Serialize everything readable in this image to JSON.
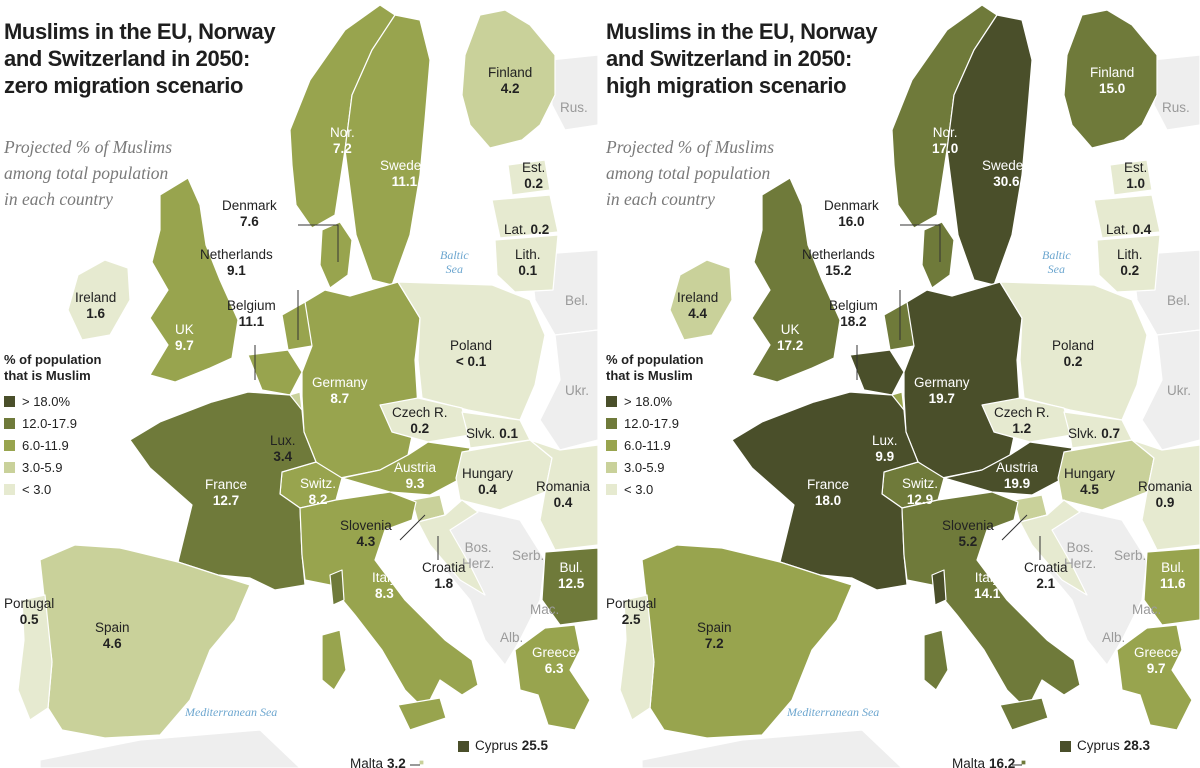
{
  "colors": {
    "bin_gt18": "#4a4f2a",
    "bin_12_18": "#6f7a3a",
    "bin_6_12": "#98a44e",
    "bin_3_6": "#c9d19a",
    "bin_lt3": "#e6ead0",
    "grey_land": "#eeeeee",
    "sea_label": "#6ca6cf"
  },
  "legend": {
    "title_line1": "% of population",
    "title_line2": "that is Muslim",
    "items": [
      {
        "label": "> 18.0%",
        "bin": "bin_gt18"
      },
      {
        "label": "12.0-17.9",
        "bin": "bin_12_18"
      },
      {
        "label": "6.0-11.9",
        "bin": "bin_6_12"
      },
      {
        "label": "3.0-5.9",
        "bin": "bin_3_6"
      },
      {
        "label": "< 3.0",
        "bin": "bin_lt3"
      }
    ]
  },
  "subtitle": {
    "line1": "Projected % of Muslims",
    "line2": "among total population",
    "line3": "in each country"
  },
  "seas": {
    "baltic_line1": "Baltic",
    "baltic_line2": "Sea",
    "mediterranean": "Mediterranean Sea"
  },
  "neighbors": {
    "rus": "Rus.",
    "bel": "Bel.",
    "ukr": "Ukr.",
    "bos_line1": "Bos.",
    "bos_line2": "Herz.",
    "serb": "Serb.",
    "mac": "Mac.",
    "alb": "Alb."
  },
  "names": {
    "finland": "Finland",
    "norway": "Nor.",
    "sweden": "Sweden",
    "estonia": "Est.",
    "latvia": "Lat.",
    "lithuania": "Lith.",
    "denmark": "Denmark",
    "netherlands": "Netherlands",
    "belgium": "Belgium",
    "ireland": "Ireland",
    "uk": "UK",
    "germany": "Germany",
    "poland": "Poland",
    "czech": "Czech R.",
    "slovakia": "Slvk.",
    "luxembourg": "Lux.",
    "france": "France",
    "switzerland": "Switz.",
    "austria": "Austria",
    "hungary": "Hungary",
    "romania": "Romania",
    "slovenia": "Slovenia",
    "croatia": "Croatia",
    "italy": "Italy",
    "bulgaria": "Bul.",
    "portugal": "Portugal",
    "spain": "Spain",
    "greece": "Greece",
    "cyprus": "Cyprus",
    "malta": "Malta"
  },
  "scenarios": [
    {
      "title_line1": "Muslims in the EU, Norway",
      "title_line2": "and Switzerland in 2050:",
      "title_line3": "zero migration scenario",
      "values": {
        "finland": 4.2,
        "norway": 7.2,
        "sweden": 11.1,
        "estonia": 0.2,
        "latvia": 0.2,
        "lithuania": 0.1,
        "denmark": 7.6,
        "netherlands": 9.1,
        "belgium": 11.1,
        "ireland": 1.6,
        "uk": 9.7,
        "germany": 8.7,
        "poland": 0.1,
        "czech": 0.2,
        "slovakia": 0.1,
        "luxembourg": 3.4,
        "france": 12.7,
        "switzerland": 8.2,
        "austria": 9.3,
        "hungary": 0.4,
        "romania": 0.4,
        "slovenia": 4.3,
        "croatia": 1.8,
        "italy": 8.3,
        "bulgaria": 12.5,
        "portugal": 0.5,
        "spain": 4.6,
        "greece": 6.3,
        "cyprus": 25.5,
        "malta": 3.2
      },
      "labels": {
        "finland": "4.2",
        "norway": "7.2",
        "sweden": "11.1",
        "estonia": "0.2",
        "latvia": "0.2",
        "lithuania": "0.1",
        "denmark": "7.6",
        "netherlands": "9.1",
        "belgium": "11.1",
        "ireland": "1.6",
        "uk": "9.7",
        "germany": "8.7",
        "poland": "< 0.1",
        "czech": "0.2",
        "slovakia": "0.1",
        "luxembourg": "3.4",
        "france": "12.7",
        "switzerland": "8.2",
        "austria": "9.3",
        "hungary": "0.4",
        "romania": "0.4",
        "slovenia": "4.3",
        "croatia": "1.8",
        "italy": "8.3",
        "bulgaria": "12.5",
        "portugal": "0.5",
        "spain": "4.6",
        "greece": "6.3",
        "cyprus": "25.5",
        "malta": "3.2"
      }
    },
    {
      "title_line1": "Muslims in the EU, Norway",
      "title_line2": "and Switzerland in 2050:",
      "title_line3": "high migration scenario",
      "values": {
        "finland": 15.0,
        "norway": 17.0,
        "sweden": 30.6,
        "estonia": 1.0,
        "latvia": 0.4,
        "lithuania": 0.2,
        "denmark": 16.0,
        "netherlands": 15.2,
        "belgium": 18.2,
        "ireland": 4.4,
        "uk": 17.2,
        "germany": 19.7,
        "poland": 0.2,
        "czech": 1.2,
        "slovakia": 0.7,
        "luxembourg": 9.9,
        "france": 18.0,
        "switzerland": 12.9,
        "austria": 19.9,
        "hungary": 4.5,
        "romania": 0.9,
        "slovenia": 5.2,
        "croatia": 2.1,
        "italy": 14.1,
        "bulgaria": 11.6,
        "portugal": 2.5,
        "spain": 7.2,
        "greece": 9.7,
        "cyprus": 28.3,
        "malta": 16.2
      },
      "labels": {
        "finland": "15.0",
        "norway": "17.0",
        "sweden": "30.6",
        "estonia": "1.0",
        "latvia": "0.4",
        "lithuania": "0.2",
        "denmark": "16.0",
        "netherlands": "15.2",
        "belgium": "18.2",
        "ireland": "4.4",
        "uk": "17.2",
        "germany": "19.7",
        "poland": "0.2",
        "czech": "1.2",
        "slovakia": "0.7",
        "luxembourg": "9.9",
        "france": "18.0",
        "switzerland": "12.9",
        "austria": "19.9",
        "hungary": "4.5",
        "romania": "0.9",
        "slovenia": "5.2",
        "croatia": "2.1",
        "italy": "14.1",
        "bulgaria": "11.6",
        "portugal": "2.5",
        "spain": "7.2",
        "greece": "9.7",
        "cyprus": "28.3",
        "malta": "16.2"
      }
    }
  ]
}
